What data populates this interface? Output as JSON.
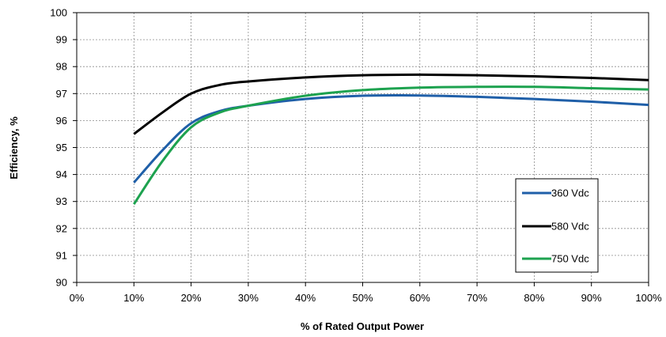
{
  "chart_data": {
    "type": "line",
    "title": "",
    "xlabel": "% of Rated Output Power",
    "ylabel": "Efficiency, %",
    "xlim": [
      0,
      100
    ],
    "ylim": [
      90,
      100
    ],
    "x_ticks": [
      0,
      10,
      20,
      30,
      40,
      50,
      60,
      70,
      80,
      90,
      100
    ],
    "x_tick_labels": [
      "0%",
      "10%",
      "20%",
      "30%",
      "40%",
      "50%",
      "60%",
      "70%",
      "80%",
      "90%",
      "100%"
    ],
    "y_ticks": [
      90,
      91,
      92,
      93,
      94,
      95,
      96,
      97,
      98,
      99,
      100
    ],
    "y_tick_labels": [
      "90",
      "91",
      "92",
      "93",
      "94",
      "95",
      "96",
      "97",
      "98",
      "99",
      "100"
    ],
    "grid": true,
    "legend_position": "bottom-right",
    "series": [
      {
        "name": "360 Vdc",
        "color": "#1f5fa8",
        "x": [
          10,
          15,
          20,
          25,
          30,
          40,
          50,
          60,
          70,
          80,
          90,
          100
        ],
        "y": [
          93.7,
          94.9,
          95.9,
          96.35,
          96.55,
          96.8,
          96.92,
          96.93,
          96.88,
          96.8,
          96.7,
          96.58
        ]
      },
      {
        "name": "580 Vdc",
        "color": "#000000",
        "x": [
          10,
          15,
          20,
          25,
          30,
          40,
          50,
          60,
          70,
          80,
          90,
          100
        ],
        "y": [
          95.5,
          96.3,
          97.0,
          97.32,
          97.45,
          97.6,
          97.68,
          97.7,
          97.68,
          97.64,
          97.58,
          97.5
        ]
      },
      {
        "name": "750 Vdc",
        "color": "#1da24f",
        "x": [
          10,
          15,
          20,
          25,
          30,
          40,
          50,
          60,
          70,
          80,
          90,
          100
        ],
        "y": [
          92.9,
          94.5,
          95.75,
          96.3,
          96.55,
          96.92,
          97.13,
          97.22,
          97.25,
          97.25,
          97.2,
          97.15
        ]
      }
    ]
  }
}
